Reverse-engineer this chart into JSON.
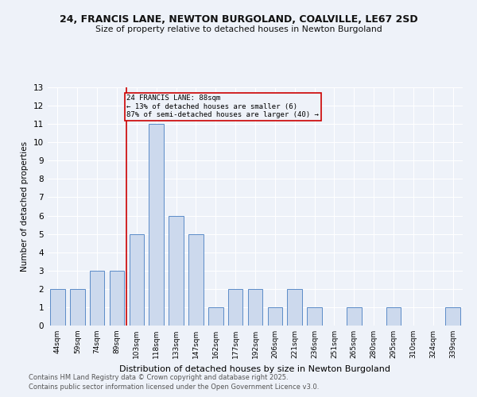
{
  "title1": "24, FRANCIS LANE, NEWTON BURGOLAND, COALVILLE, LE67 2SD",
  "title2": "Size of property relative to detached houses in Newton Burgoland",
  "xlabel": "Distribution of detached houses by size in Newton Burgoland",
  "ylabel": "Number of detached properties",
  "categories": [
    "44sqm",
    "59sqm",
    "74sqm",
    "89sqm",
    "103sqm",
    "118sqm",
    "133sqm",
    "147sqm",
    "162sqm",
    "177sqm",
    "192sqm",
    "206sqm",
    "221sqm",
    "236sqm",
    "251sqm",
    "265sqm",
    "280sqm",
    "295sqm",
    "310sqm",
    "324sqm",
    "339sqm"
  ],
  "values": [
    2,
    2,
    3,
    3,
    5,
    11,
    6,
    5,
    1,
    2,
    2,
    1,
    2,
    1,
    0,
    1,
    0,
    1,
    0,
    0,
    1
  ],
  "bar_color": "#ccd9ed",
  "bar_edge_color": "#5b8cc8",
  "property_line_x": 3.5,
  "property_line_color": "#cc0000",
  "annotation_text": "24 FRANCIS LANE: 88sqm\n← 13% of detached houses are smaller (6)\n87% of semi-detached houses are larger (40) →",
  "annotation_box_color": "#cc0000",
  "ylim": [
    0,
    13
  ],
  "yticks": [
    0,
    1,
    2,
    3,
    4,
    5,
    6,
    7,
    8,
    9,
    10,
    11,
    12,
    13
  ],
  "footer1": "Contains HM Land Registry data © Crown copyright and database right 2025.",
  "footer2": "Contains public sector information licensed under the Open Government Licence v3.0.",
  "bg_color": "#eef2f9",
  "grid_color": "#ffffff"
}
